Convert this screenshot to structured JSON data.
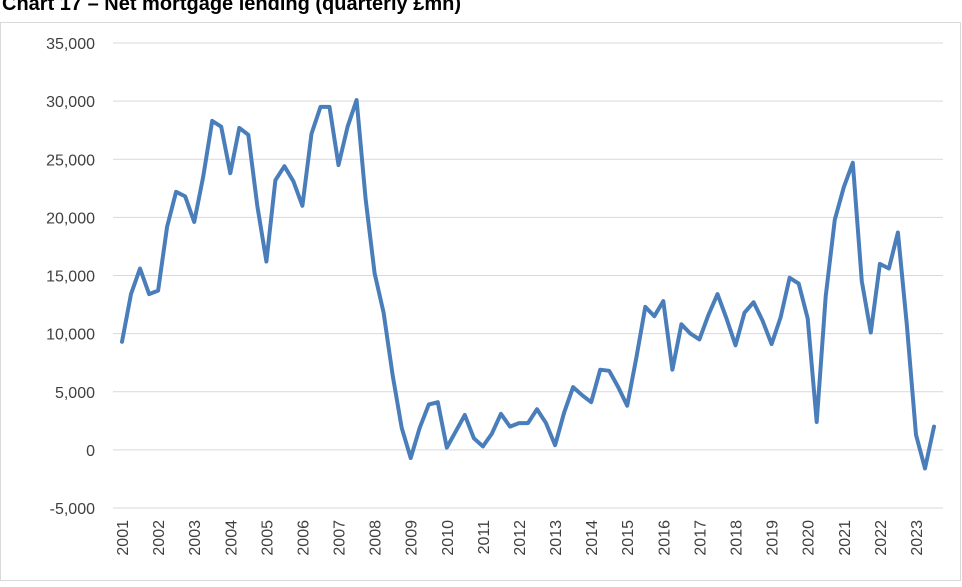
{
  "chart_data": {
    "type": "line",
    "title": "Chart 17 – Net mortgage lending (quarterly £mn)",
    "categories": [
      "2001",
      null,
      null,
      null,
      "2002",
      null,
      null,
      null,
      "2003",
      null,
      null,
      null,
      "2004",
      null,
      null,
      null,
      "2005",
      null,
      null,
      null,
      "2006",
      null,
      null,
      null,
      "2007",
      null,
      null,
      null,
      "2008",
      null,
      null,
      null,
      "2009",
      null,
      null,
      null,
      "2010",
      null,
      null,
      null,
      "2011",
      null,
      null,
      null,
      "2012",
      null,
      null,
      null,
      "2013",
      null,
      null,
      null,
      "2014",
      null,
      null,
      null,
      "2015",
      null,
      null,
      null,
      "2016",
      null,
      null,
      null,
      "2017",
      null,
      null,
      null,
      "2018",
      null,
      null,
      null,
      "2019",
      null,
      null,
      null,
      "2020",
      null,
      null,
      null,
      "2021",
      null,
      null,
      null,
      "2022",
      null,
      null,
      null,
      "2023",
      null,
      null
    ],
    "values": [
      9300,
      13400,
      15600,
      13400,
      13700,
      19200,
      22200,
      21800,
      19600,
      23500,
      28300,
      27800,
      23800,
      27700,
      27100,
      21000,
      16200,
      23200,
      24400,
      23100,
      21000,
      27200,
      29500,
      29500,
      24500,
      27800,
      30100,
      21600,
      15200,
      11800,
      6400,
      1900,
      -700,
      1900,
      3900,
      4100,
      200,
      1600,
      3000,
      1000,
      300,
      1400,
      3100,
      2000,
      2300,
      2300,
      3500,
      2300,
      400,
      3200,
      5400,
      4700,
      4100,
      6900,
      6800,
      5400,
      3800,
      7900,
      12300,
      11500,
      12800,
      6900,
      10800,
      10000,
      9500,
      11600,
      13400,
      11300,
      9000,
      11800,
      12700,
      11100,
      9100,
      11400,
      14800,
      14300,
      11300,
      2400,
      13200,
      19800,
      22600,
      24700,
      14500,
      10100,
      16000,
      15600,
      18700,
      10700,
      1300,
      -1600,
      2000
    ],
    "color": "#4a7ebb",
    "ylim": [
      -5000,
      35000
    ],
    "yticks": [
      {
        "value": -5000,
        "label": "-5,000"
      },
      0,
      {
        "value": 5000,
        "label": "5,000"
      },
      {
        "value": 10000,
        "label": "10,000"
      },
      {
        "value": 15000,
        "label": "15,000"
      },
      {
        "value": 20000,
        "label": "20,000"
      },
      {
        "value": 25000,
        "label": "25,000"
      },
      {
        "value": 30000,
        "label": "30,000"
      },
      {
        "value": 35000,
        "label": "35,000"
      }
    ],
    "grid": true
  }
}
